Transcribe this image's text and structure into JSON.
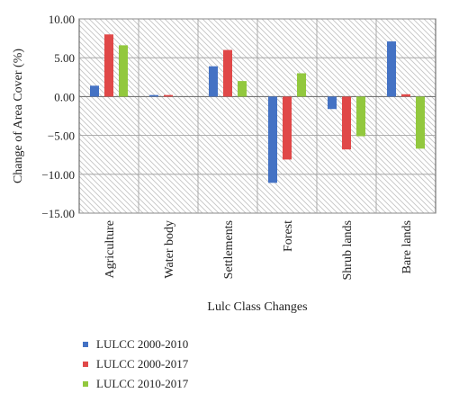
{
  "chart_data": {
    "type": "bar",
    "categories": [
      "Agriculture",
      "Water body",
      "Settlements",
      "Forest",
      "Shrub lands",
      "Bare lands"
    ],
    "series": [
      {
        "name": "LULCC 2000-2010",
        "color": "#4472c4",
        "values": [
          1.4,
          0.2,
          3.9,
          -11.1,
          -1.6,
          7.1
        ]
      },
      {
        "name": "LULCC 2000-2017",
        "color": "#e04848",
        "values": [
          8.0,
          0.2,
          6.0,
          -8.1,
          -6.8,
          0.3
        ]
      },
      {
        "name": "LULCC 2010-2017",
        "color": "#92c83e",
        "values": [
          6.6,
          0.0,
          2.0,
          3.0,
          -5.1,
          -6.7
        ]
      }
    ],
    "xlabel": "Lulc Class Changes",
    "ylabel": "Change of Area Cover (%)",
    "ylim": [
      -15,
      10
    ],
    "yticks": [
      10,
      5,
      0,
      -5,
      -10,
      -15
    ],
    "ytick_labels": [
      "10.00",
      "5.00",
      "0.00",
      "−5.00",
      "−10.00",
      "−15.00"
    ],
    "grid": true,
    "legend_position": "bottom-left"
  }
}
